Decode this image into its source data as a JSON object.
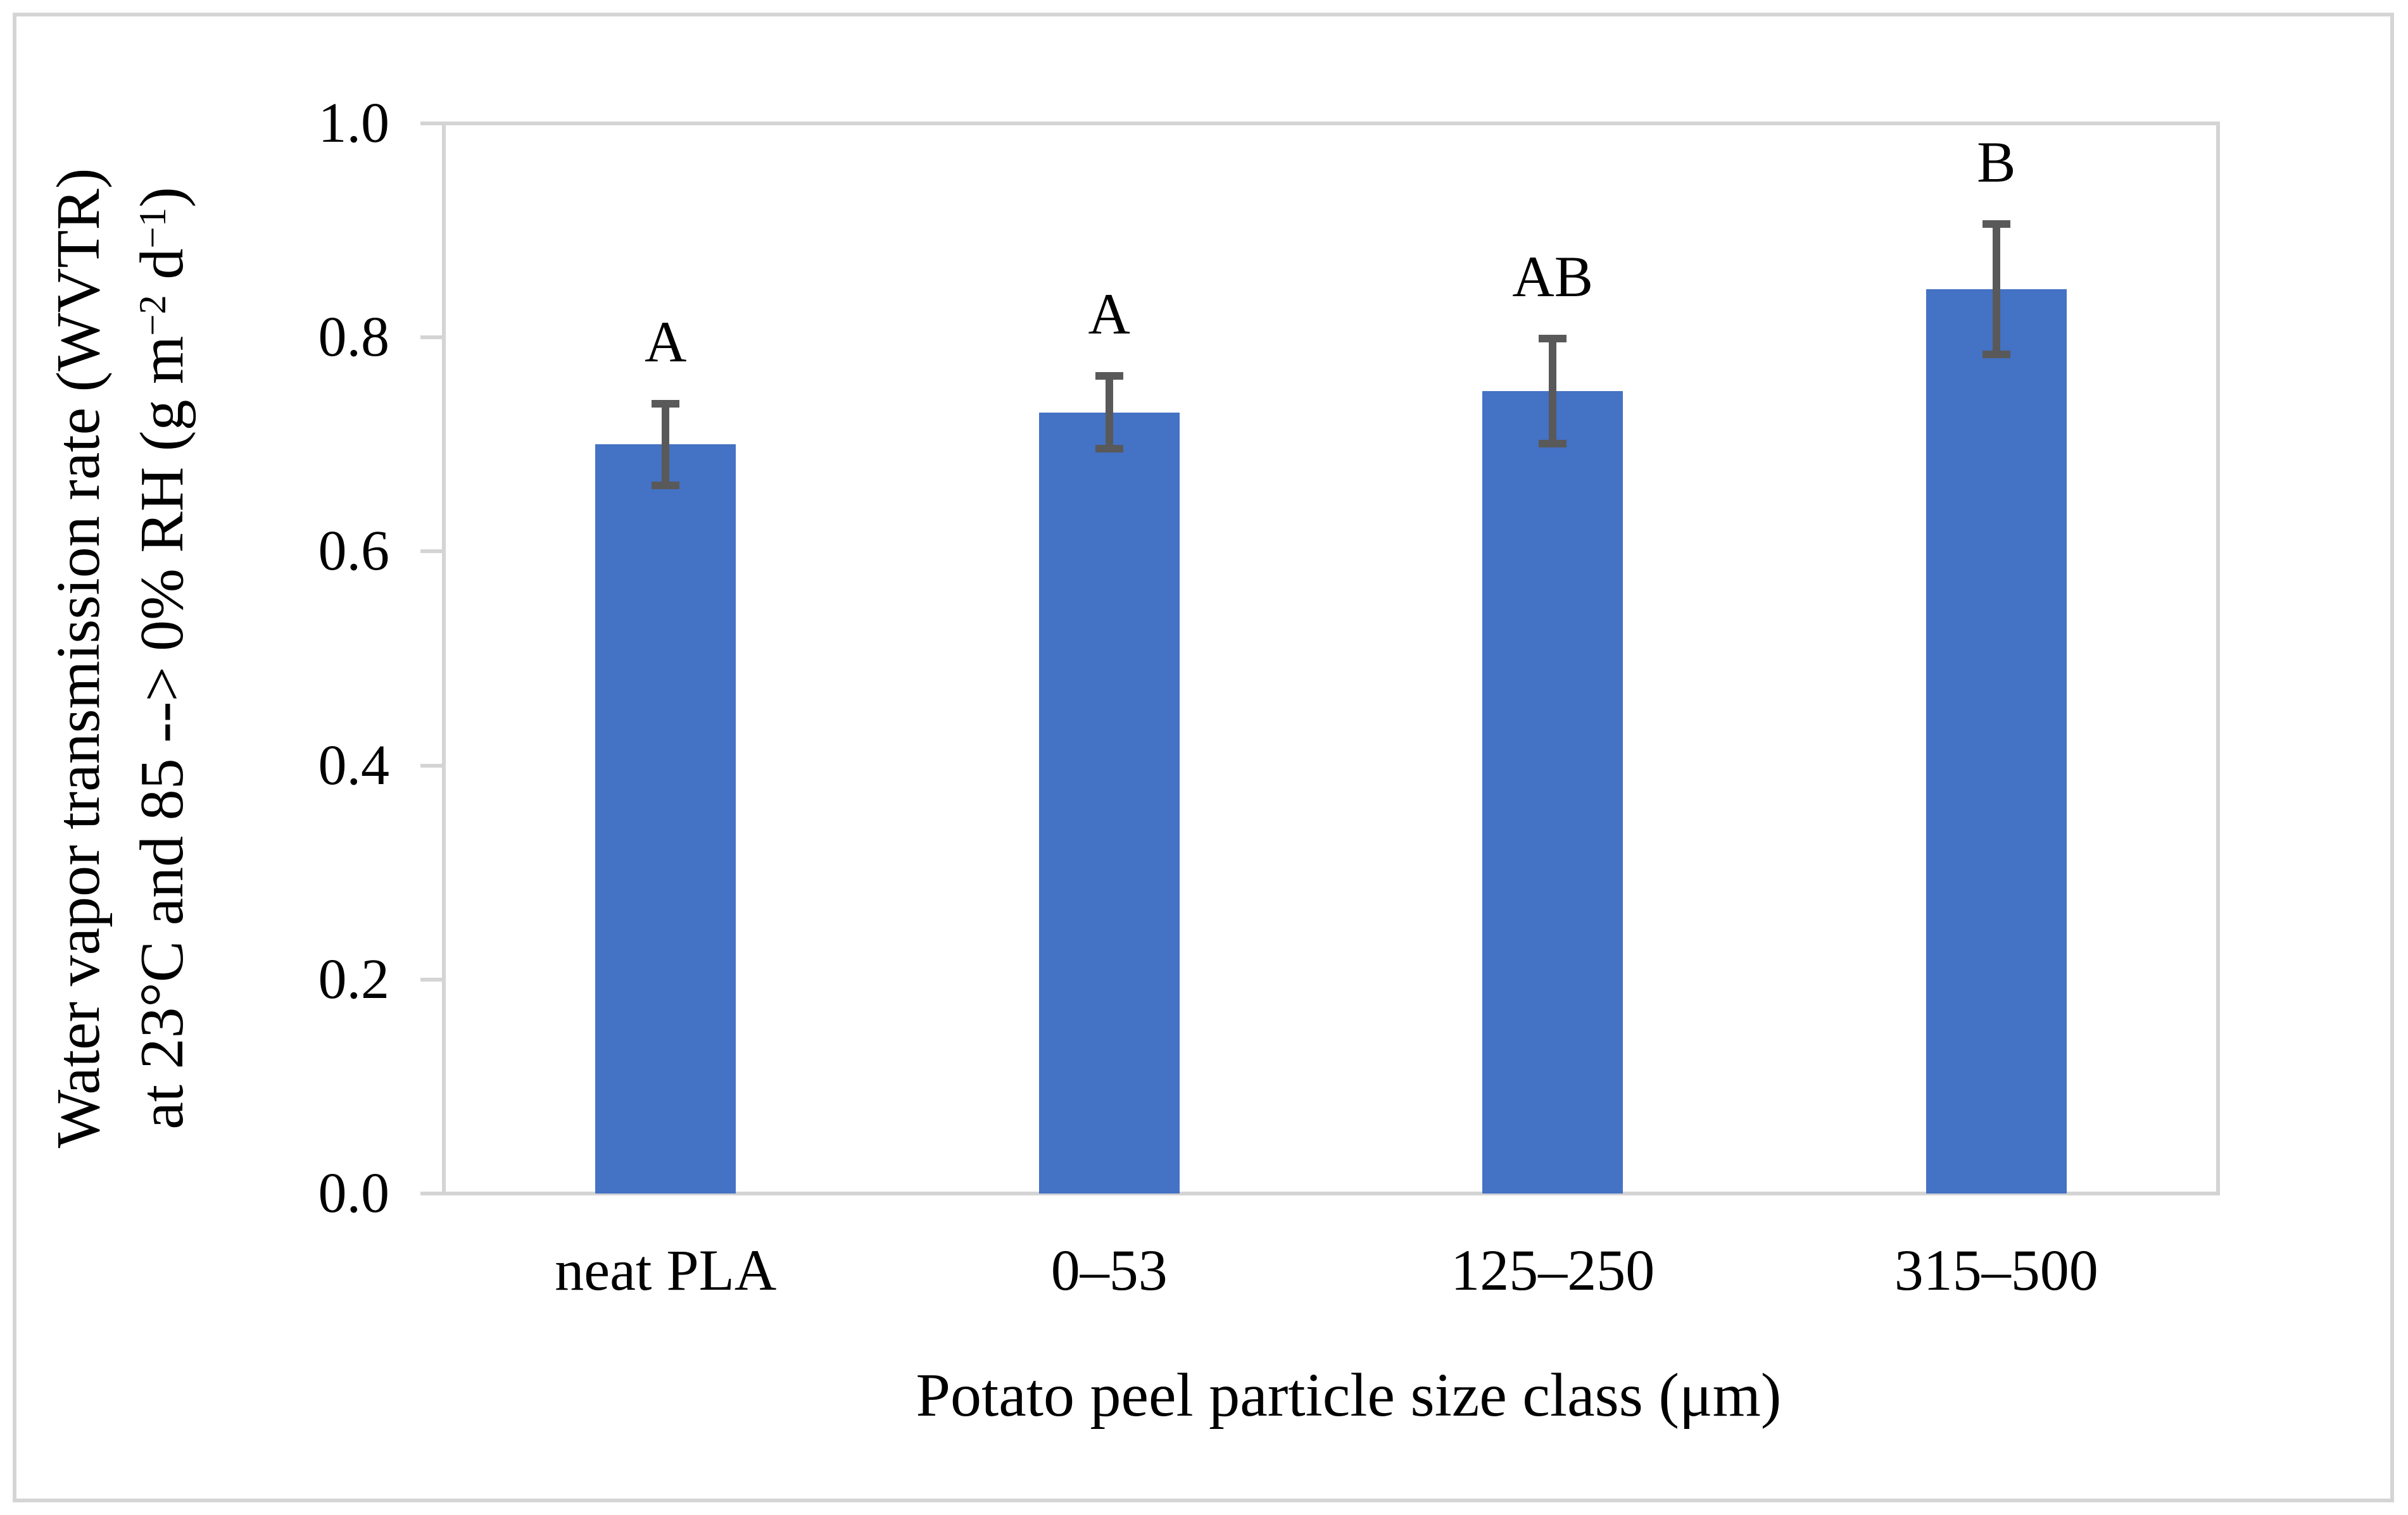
{
  "figure": {
    "background": "#ffffff",
    "outer_border_color": "#d5d5d5",
    "plot_border_color": "#d4d4d4",
    "text_color": "#000000"
  },
  "chart_data": {
    "type": "bar",
    "title": "",
    "categories": [
      "neat PLA",
      "0–53",
      "125–250",
      "315–500"
    ],
    "values": [
      0.7,
      0.73,
      0.75,
      0.845
    ],
    "error_bars": [
      0.038,
      0.034,
      0.049,
      0.061
    ],
    "significance_letters": [
      "A",
      "A",
      "AB",
      "B"
    ],
    "bar_color": "#4472c4",
    "error_bar_color": "#595959",
    "axis_color": "#d4d4d4",
    "xlabel": "Potato peel particle size class (μm)",
    "ylabel": "Water vapor transmission rate (WVTR) at 23°C and 85 --> 0% RH (g m⁻² d⁻¹)",
    "ylabel_line1": "Water vapor transmission rate (WVTR)",
    "ylabel_line2_segments": [
      {
        "text": "at 23°C and 85 --> 0% RH (g m",
        "sup": false
      },
      {
        "text": "−2",
        "sup": true
      },
      {
        "text": " d",
        "sup": false
      },
      {
        "text": "−1",
        "sup": true
      },
      {
        "text": ")",
        "sup": false
      }
    ],
    "ylim": [
      0.0,
      1.0
    ],
    "y_ticks": [
      {
        "label": "0.0",
        "value": 0.0
      },
      {
        "label": "0.2",
        "value": 0.2
      },
      {
        "label": "0.4",
        "value": 0.4
      },
      {
        "label": "0.6",
        "value": 0.6
      },
      {
        "label": "0.8",
        "value": 0.8
      },
      {
        "label": "1.0",
        "value": 1.0
      }
    ],
    "grid": "none",
    "legend": "none"
  }
}
